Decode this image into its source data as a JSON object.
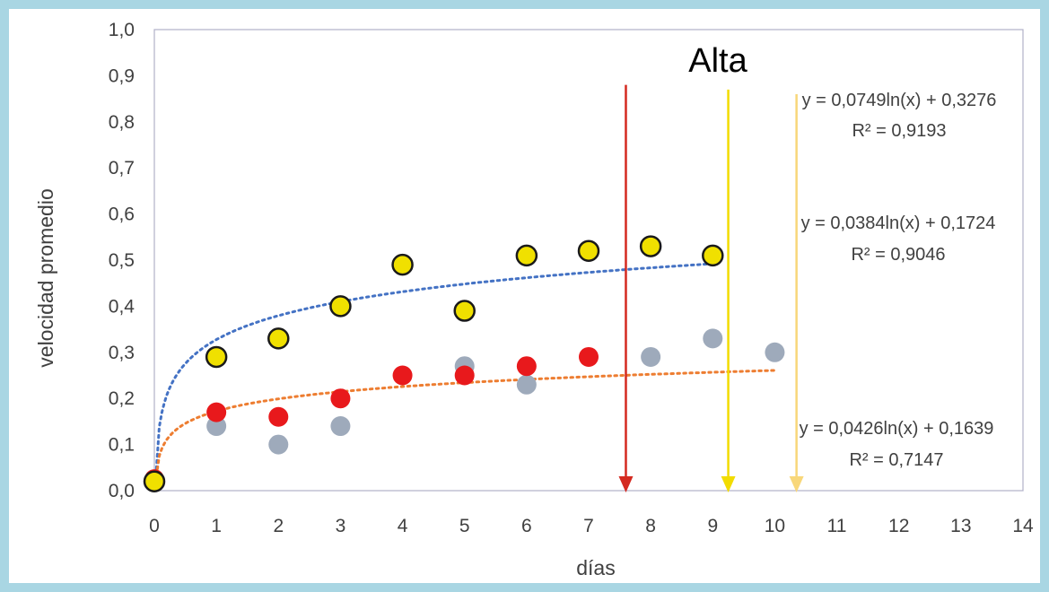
{
  "chart_data": {
    "type": "scatter",
    "title": "Alta",
    "xlabel": "días",
    "ylabel": "velocidad promedio",
    "xlim": [
      0,
      14
    ],
    "ylim": [
      0,
      1.0
    ],
    "x_ticks": [
      "0",
      "1",
      "2",
      "3",
      "4",
      "5",
      "6",
      "7",
      "8",
      "9",
      "10",
      "11",
      "12",
      "13",
      "14"
    ],
    "y_ticks": [
      "0,0",
      "0,1",
      "0,2",
      "0,3",
      "0,4",
      "0,5",
      "0,6",
      "0,7",
      "0,8",
      "0,9",
      "1,0"
    ],
    "grid": false,
    "series": [
      {
        "color": "#f0e000",
        "edge": "#1a1a1a",
        "points": [
          [
            0,
            0.02
          ],
          [
            1,
            0.29
          ],
          [
            2,
            0.33
          ],
          [
            3,
            0.4
          ],
          [
            4,
            0.49
          ],
          [
            5,
            0.39
          ],
          [
            6,
            0.51
          ],
          [
            7,
            0.52
          ],
          [
            8,
            0.53
          ],
          [
            9,
            0.51
          ]
        ]
      },
      {
        "color": "#e8191c",
        "points": [
          [
            0,
            0.025
          ],
          [
            1,
            0.17
          ],
          [
            2,
            0.16
          ],
          [
            3,
            0.2
          ],
          [
            4,
            0.25
          ],
          [
            5,
            0.25
          ],
          [
            6,
            0.27
          ],
          [
            7,
            0.29
          ]
        ]
      },
      {
        "color": "#9eaabb",
        "points": [
          [
            0,
            0.02
          ],
          [
            1,
            0.14
          ],
          [
            2,
            0.1
          ],
          [
            3,
            0.14
          ],
          [
            5,
            0.27
          ],
          [
            6,
            0.23
          ],
          [
            8,
            0.29
          ],
          [
            9,
            0.33
          ],
          [
            10,
            0.3
          ]
        ]
      }
    ],
    "trendlines": [
      {
        "color": "#4472c4",
        "a": 0.0749,
        "b": 0.3276,
        "x_end": 9
      },
      {
        "color": "#ed7d31",
        "a": 0.0384,
        "b": 0.1724,
        "x_end": 10
      }
    ],
    "arrows": [
      {
        "color": "#d42a20",
        "x": 7.6,
        "y_top": 0.88
      },
      {
        "color": "#f2dc00",
        "x": 9.25,
        "y_top": 0.87
      },
      {
        "color": "#f8d77a",
        "x": 10.35,
        "y_top": 0.86
      }
    ],
    "annotations": [
      {
        "line1": "y = 0,0749ln(x) + 0,3276",
        "line2": "R² = 0,9193"
      },
      {
        "line1": "y = 0,0384ln(x) + 0,1724",
        "line2": "R² = 0,9046"
      },
      {
        "line1": "y = 0,0426ln(x) + 0,1639",
        "line2": "R² = 0,7147"
      }
    ]
  }
}
